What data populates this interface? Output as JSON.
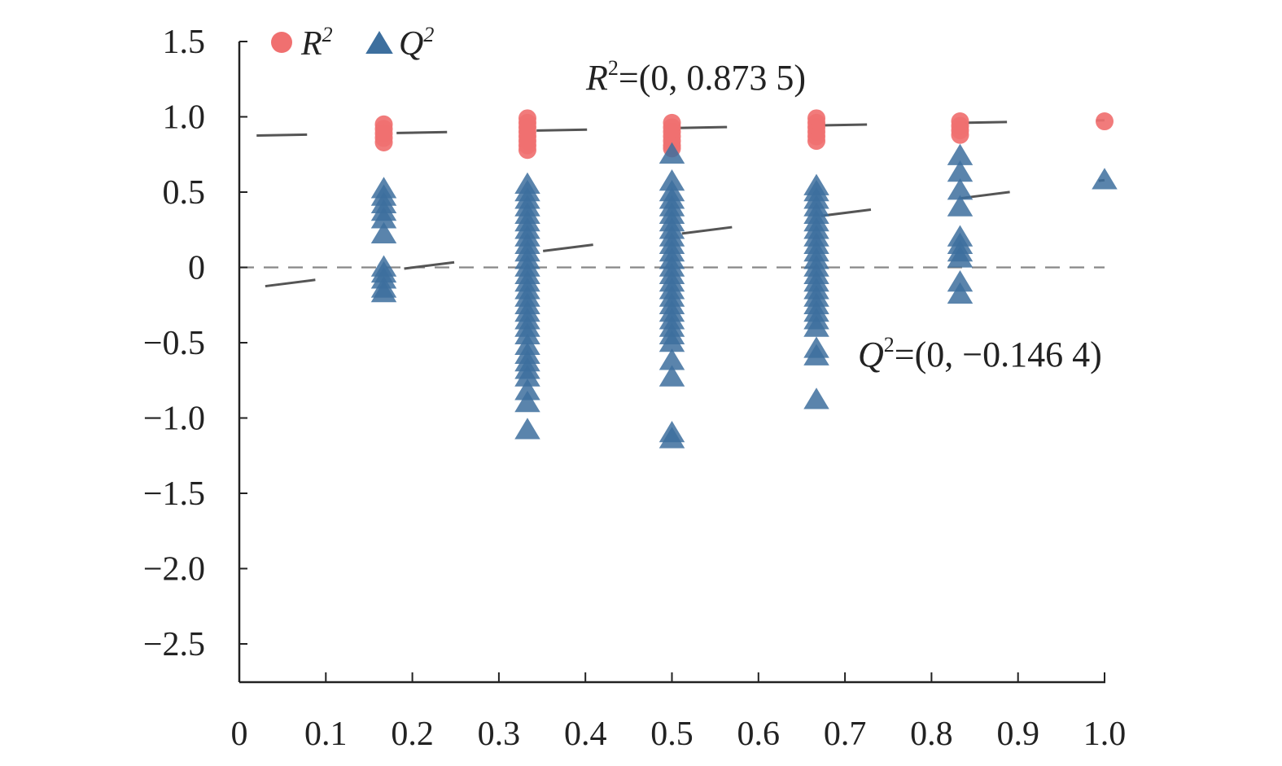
{
  "chart_data": {
    "type": "scatter",
    "title": "",
    "xlabel": "",
    "ylabel": "",
    "xlim": [
      0,
      1.0
    ],
    "ylim": [
      -2.75,
      1.5
    ],
    "x_ticks": [
      0,
      0.1,
      0.2,
      0.3,
      0.4,
      0.5,
      0.6,
      0.7,
      0.8,
      0.9,
      1.0
    ],
    "x_tick_labels": [
      "0",
      "0.1",
      "0.2",
      "0.3",
      "0.4",
      "0.5",
      "0.6",
      "0.7",
      "0.8",
      "0.9",
      "1.0"
    ],
    "y_ticks": [
      1.5,
      1.0,
      0.5,
      0,
      -0.5,
      -1.0,
      -1.5,
      -2.0,
      -2.5
    ],
    "y_tick_labels": [
      "1.5",
      "1.0",
      "0.5",
      "0",
      "−0.5",
      "−1.0",
      "−1.5",
      "−2.0",
      "−2.5"
    ],
    "legend": {
      "position": "top-left",
      "entries": [
        {
          "name": "R",
          "sup": "2",
          "marker": "circle",
          "color": "#f07070"
        },
        {
          "name": "Q",
          "sup": "2",
          "marker": "triangle",
          "color": "#3d6f9e"
        }
      ]
    },
    "series": [
      {
        "name": "R2",
        "marker": "circle",
        "color": "#f07070",
        "points": [
          [
            0.167,
            0.95
          ],
          [
            0.167,
            0.92
          ],
          [
            0.167,
            0.89
          ],
          [
            0.167,
            0.86
          ],
          [
            0.167,
            0.83
          ],
          [
            0.333,
            0.99
          ],
          [
            0.333,
            0.96
          ],
          [
            0.333,
            0.93
          ],
          [
            0.333,
            0.9
          ],
          [
            0.333,
            0.87
          ],
          [
            0.333,
            0.84
          ],
          [
            0.333,
            0.81
          ],
          [
            0.333,
            0.78
          ],
          [
            0.5,
            0.96
          ],
          [
            0.5,
            0.93
          ],
          [
            0.5,
            0.9
          ],
          [
            0.5,
            0.87
          ],
          [
            0.5,
            0.84
          ],
          [
            0.5,
            0.81
          ],
          [
            0.5,
            0.79
          ],
          [
            0.667,
            0.99
          ],
          [
            0.667,
            0.96
          ],
          [
            0.667,
            0.93
          ],
          [
            0.667,
            0.9
          ],
          [
            0.667,
            0.87
          ],
          [
            0.667,
            0.84
          ],
          [
            0.833,
            0.97
          ],
          [
            0.833,
            0.94
          ],
          [
            0.833,
            0.91
          ],
          [
            0.833,
            0.88
          ],
          [
            1.0,
            0.97
          ]
        ]
      },
      {
        "name": "Q2",
        "marker": "triangle",
        "color": "#3d6f9e",
        "points": [
          [
            0.167,
            0.52
          ],
          [
            0.167,
            0.47
          ],
          [
            0.167,
            0.42
          ],
          [
            0.167,
            0.37
          ],
          [
            0.167,
            0.32
          ],
          [
            0.167,
            0.22
          ],
          [
            0.167,
            0.0
          ],
          [
            0.167,
            -0.04
          ],
          [
            0.167,
            -0.08
          ],
          [
            0.167,
            -0.14
          ],
          [
            0.167,
            -0.17
          ],
          [
            0.333,
            0.55
          ],
          [
            0.333,
            0.5
          ],
          [
            0.333,
            0.45
          ],
          [
            0.333,
            0.4
          ],
          [
            0.333,
            0.35
          ],
          [
            0.333,
            0.3
          ],
          [
            0.333,
            0.25
          ],
          [
            0.333,
            0.2
          ],
          [
            0.333,
            0.15
          ],
          [
            0.333,
            0.1
          ],
          [
            0.333,
            0.05
          ],
          [
            0.333,
            0.0
          ],
          [
            0.333,
            -0.05
          ],
          [
            0.333,
            -0.1
          ],
          [
            0.333,
            -0.15
          ],
          [
            0.333,
            -0.2
          ],
          [
            0.333,
            -0.25
          ],
          [
            0.333,
            -0.3
          ],
          [
            0.333,
            -0.35
          ],
          [
            0.333,
            -0.4
          ],
          [
            0.333,
            -0.45
          ],
          [
            0.333,
            -0.52
          ],
          [
            0.333,
            -0.58
          ],
          [
            0.333,
            -0.63
          ],
          [
            0.333,
            -0.68
          ],
          [
            0.333,
            -0.73
          ],
          [
            0.333,
            -0.82
          ],
          [
            0.333,
            -0.9
          ],
          [
            0.333,
            -1.08
          ],
          [
            0.5,
            0.75
          ],
          [
            0.5,
            0.57
          ],
          [
            0.5,
            0.5
          ],
          [
            0.5,
            0.45
          ],
          [
            0.5,
            0.4
          ],
          [
            0.5,
            0.35
          ],
          [
            0.5,
            0.3
          ],
          [
            0.5,
            0.25
          ],
          [
            0.5,
            0.2
          ],
          [
            0.5,
            0.15
          ],
          [
            0.5,
            0.1
          ],
          [
            0.5,
            0.05
          ],
          [
            0.5,
            0.0
          ],
          [
            0.5,
            -0.05
          ],
          [
            0.5,
            -0.1
          ],
          [
            0.5,
            -0.15
          ],
          [
            0.5,
            -0.2
          ],
          [
            0.5,
            -0.25
          ],
          [
            0.5,
            -0.3
          ],
          [
            0.5,
            -0.35
          ],
          [
            0.5,
            -0.4
          ],
          [
            0.5,
            -0.45
          ],
          [
            0.5,
            -0.5
          ],
          [
            0.5,
            -0.62
          ],
          [
            0.5,
            -0.73
          ],
          [
            0.5,
            -1.1
          ],
          [
            0.5,
            -1.14
          ],
          [
            0.667,
            0.54
          ],
          [
            0.667,
            0.5
          ],
          [
            0.667,
            0.45
          ],
          [
            0.667,
            0.4
          ],
          [
            0.667,
            0.35
          ],
          [
            0.667,
            0.3
          ],
          [
            0.667,
            0.25
          ],
          [
            0.667,
            0.2
          ],
          [
            0.667,
            0.15
          ],
          [
            0.667,
            0.1
          ],
          [
            0.667,
            0.05
          ],
          [
            0.667,
            0.0
          ],
          [
            0.667,
            -0.05
          ],
          [
            0.667,
            -0.1
          ],
          [
            0.667,
            -0.15
          ],
          [
            0.667,
            -0.2
          ],
          [
            0.667,
            -0.25
          ],
          [
            0.667,
            -0.3
          ],
          [
            0.667,
            -0.35
          ],
          [
            0.667,
            -0.4
          ],
          [
            0.667,
            -0.54
          ],
          [
            0.667,
            -0.59
          ],
          [
            0.667,
            -0.88
          ],
          [
            0.833,
            0.74
          ],
          [
            0.833,
            0.63
          ],
          [
            0.833,
            0.51
          ],
          [
            0.833,
            0.4
          ],
          [
            0.833,
            0.2
          ],
          [
            0.833,
            0.15
          ],
          [
            0.833,
            0.1
          ],
          [
            0.833,
            0.06
          ],
          [
            0.833,
            -0.1
          ],
          [
            0.833,
            -0.18
          ],
          [
            1.0,
            0.58
          ]
        ]
      }
    ],
    "trend_lines": [
      {
        "name": "R2-fit",
        "intercept": 0.8735,
        "slope": 0.1035,
        "x_range": [
          0.02,
          1.0
        ],
        "style": "long-dash",
        "color": "#555555"
      },
      {
        "name": "Q2-fit",
        "intercept": -0.1464,
        "slope": 0.7264,
        "x_range": [
          0.03,
          1.0
        ],
        "style": "long-dash",
        "color": "#555555"
      }
    ],
    "reference_lines": [
      {
        "name": "zero-line",
        "y": 0,
        "style": "dashed",
        "color": "#888888"
      }
    ],
    "annotations": [
      {
        "name": "R2-intercept",
        "italic": "R",
        "sup": "2",
        "text": "=(0, 0.873 5)"
      },
      {
        "name": "Q2-intercept",
        "italic": "Q",
        "sup": "2",
        "text": "=(0, −0.146 4)"
      }
    ]
  }
}
